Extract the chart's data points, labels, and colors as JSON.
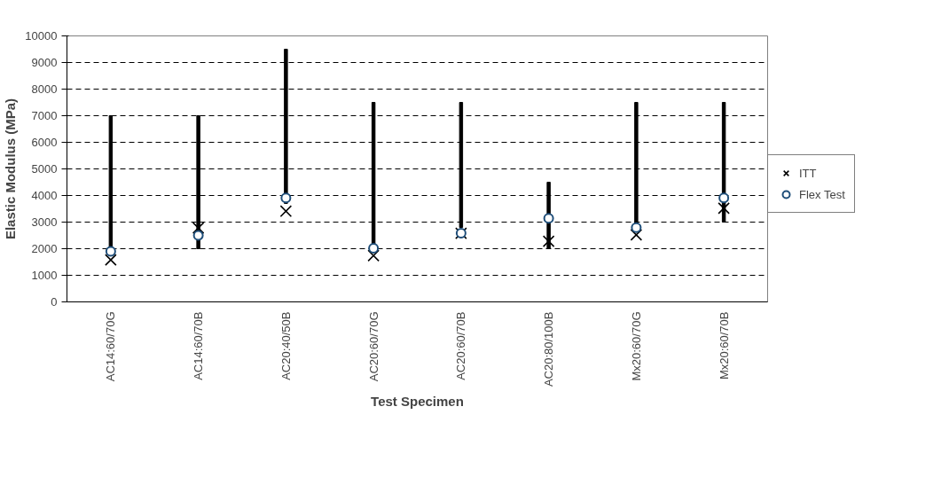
{
  "chart_data": {
    "type": "bar",
    "xlabel": "Test Specimen",
    "ylabel": "Elastic Modulus (MPa)",
    "categories": [
      "AC14:60/70G",
      "AC14:60/70B",
      "AC20:40/50B",
      "AC20:60/70G",
      "AC20:60/70B",
      "AC20:80/100B",
      "Mx20:60/70G",
      "Mx20:60/70B"
    ],
    "series": [
      {
        "color": "#000000",
        "values": [
          5000,
          5000,
          5800,
          5500,
          4700,
          2500,
          4700,
          4500
        ],
        "base": [
          2000,
          2000,
          3700,
          2000,
          2800,
          2000,
          2800,
          3000
        ]
      },
      {
        "type": "scatter",
        "name": "ITT",
        "color": "#000000",
        "marker": "cross",
        "values": [
          1580,
          2780,
          3410,
          1740,
          2580,
          2280,
          2520,
          3520
        ]
      },
      {
        "type": "scatter",
        "name": "Flex Test",
        "color": "#1f4e79",
        "marker": "circle",
        "values": [
          1900,
          2500,
          3910,
          2020,
          2580,
          3140,
          2790,
          3910
        ]
      }
    ],
    "ylim": [
      0,
      10000
    ],
    "yticks": [
      0,
      1000,
      2000,
      3000,
      4000,
      5000,
      6000,
      7000,
      8000,
      9000,
      10000
    ],
    "grid": "y",
    "legend": "right"
  }
}
